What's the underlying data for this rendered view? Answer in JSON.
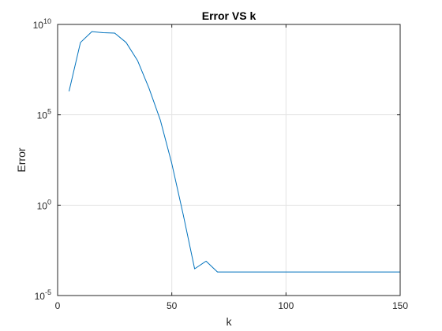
{
  "chart_data": {
    "type": "line",
    "title": "Error VS k",
    "xlabel": "k",
    "ylabel": "Error",
    "xlim": [
      0,
      150
    ],
    "ylim_log10": [
      -5,
      10
    ],
    "y_scale": "log",
    "grid": true,
    "line_color": "#0072BD",
    "x_ticks": [
      {
        "value": 0,
        "label": "0"
      },
      {
        "value": 50,
        "label": "50"
      },
      {
        "value": 100,
        "label": "100"
      },
      {
        "value": 150,
        "label": "150"
      }
    ],
    "y_ticks": [
      {
        "exp": -5,
        "base": "10",
        "sup": "-5"
      },
      {
        "exp": 0,
        "base": "10",
        "sup": "0"
      },
      {
        "exp": 5,
        "base": "10",
        "sup": "5"
      },
      {
        "exp": 10,
        "base": "10",
        "sup": "10"
      }
    ],
    "series": [
      {
        "x": [
          5,
          10,
          15,
          20,
          25,
          30,
          35,
          40,
          45,
          50,
          55,
          60,
          65,
          70,
          75,
          80,
          85,
          90,
          95,
          100,
          105,
          110,
          115,
          120,
          125,
          130,
          135,
          140,
          145,
          150
        ],
        "y": [
          2000000.0,
          1000000000.0,
          4000000000.0,
          3500000000.0,
          3300000000.0,
          1000000000.0,
          100000000.0,
          3000000.0,
          50000.0,
          200.0,
          0.3,
          0.0003,
          0.0008,
          0.0002,
          0.0002,
          0.0002,
          0.0002,
          0.0002,
          0.0002,
          0.0002,
          0.0002,
          0.0002,
          0.0002,
          0.0002,
          0.0002,
          0.0002,
          0.0002,
          0.0002,
          0.0002,
          0.0002
        ]
      }
    ]
  }
}
